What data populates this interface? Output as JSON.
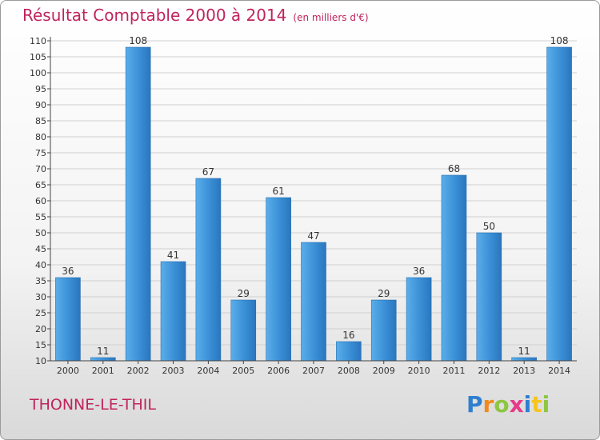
{
  "chart_data": {
    "type": "bar",
    "title": "Résultat Comptable 2000 à 2014",
    "subtitle": "(en milliers d'€)",
    "categories": [
      "2000",
      "2001",
      "2002",
      "2003",
      "2004",
      "2005",
      "2006",
      "2007",
      "2008",
      "2009",
      "2010",
      "2011",
      "2012",
      "2013",
      "2014"
    ],
    "values": [
      36,
      11,
      108,
      41,
      67,
      29,
      61,
      47,
      16,
      29,
      36,
      68,
      50,
      11,
      108
    ],
    "ylim": [
      10,
      110
    ],
    "yticks": [
      10,
      15,
      20,
      25,
      30,
      35,
      40,
      45,
      50,
      55,
      60,
      65,
      70,
      75,
      80,
      85,
      90,
      95,
      100,
      105,
      110
    ],
    "xlabel": "",
    "ylabel": "",
    "grid": true,
    "bar_color": "#3a8fd6"
  },
  "place_name": "THONNE-LE-THIL",
  "logo": {
    "letters": [
      "P",
      "r",
      "o",
      "x",
      "i",
      "t",
      "i"
    ],
    "colors": [
      "#2f7fd0",
      "#f08a1c",
      "#8dc63f",
      "#e83a8a",
      "#2f7fd0",
      "#f5c51e",
      "#8dc63f"
    ]
  }
}
